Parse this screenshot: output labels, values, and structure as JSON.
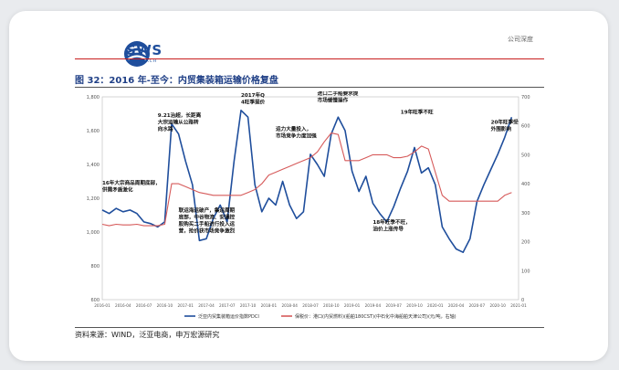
{
  "header": {
    "logo_text": "SWS",
    "logo_sub": "RESEARCH",
    "section": "公司深度"
  },
  "figure_title": "图 32：2016 年-至今：内贸集装箱运输价格复盘",
  "source": "资料来源：WIND，泛亚电商，申万宏源研究",
  "colors": {
    "blue_series": "#1f4e9c",
    "red_series": "#d65a5a",
    "title": "#1f3f86",
    "rule": "#c81e1e"
  },
  "chart_data": {
    "type": "line",
    "x_ticks": [
      "2016-01",
      "2016-04",
      "2016-07",
      "2016-10",
      "2017-01",
      "2017-04",
      "2017-07",
      "2017-10",
      "2018-01",
      "2018-04",
      "2018-07",
      "2018-10",
      "2019-01",
      "2019-04",
      "2019-07",
      "2019-10",
      "2020-01",
      "2020-04",
      "2020-07",
      "2020-10",
      "2021-01"
    ],
    "ylim_left": [
      600,
      1800
    ],
    "yticks_left": [
      "600",
      "800",
      "1,000",
      "1,200",
      "1,400",
      "1,600",
      "1,800"
    ],
    "ylim_right": [
      0,
      700
    ],
    "yticks_right": [
      "0",
      "100",
      "200",
      "300",
      "400",
      "500",
      "600",
      "700"
    ],
    "series": [
      {
        "name": "泛亚内贸集装箱运价指数PDCI",
        "axis": "left",
        "color": "#1f4e9c",
        "points": [
          [
            "2016-01",
            1130
          ],
          [
            "2016-02",
            1110
          ],
          [
            "2016-03",
            1140
          ],
          [
            "2016-04",
            1120
          ],
          [
            "2016-05",
            1130
          ],
          [
            "2016-06",
            1110
          ],
          [
            "2016-07",
            1060
          ],
          [
            "2016-08",
            1050
          ],
          [
            "2016-09",
            1030
          ],
          [
            "2016-10",
            1060
          ],
          [
            "2016-11",
            1640
          ],
          [
            "2016-12",
            1580
          ],
          [
            "2017-01",
            1420
          ],
          [
            "2017-02",
            1280
          ],
          [
            "2017-03",
            950
          ],
          [
            "2017-04",
            960
          ],
          [
            "2017-05",
            1080
          ],
          [
            "2017-06",
            1160
          ],
          [
            "2017-07",
            1060
          ],
          [
            "2017-08",
            1420
          ],
          [
            "2017-09",
            1720
          ],
          [
            "2017-10",
            1680
          ],
          [
            "2017-11",
            1280
          ],
          [
            "2017-12",
            1120
          ],
          [
            "2018-01",
            1200
          ],
          [
            "2018-02",
            1160
          ],
          [
            "2018-03",
            1300
          ],
          [
            "2018-04",
            1160
          ],
          [
            "2018-05",
            1080
          ],
          [
            "2018-06",
            1120
          ],
          [
            "2018-07",
            1460
          ],
          [
            "2018-08",
            1400
          ],
          [
            "2018-09",
            1330
          ],
          [
            "2018-10",
            1580
          ],
          [
            "2018-11",
            1680
          ],
          [
            "2018-12",
            1600
          ],
          [
            "2019-01",
            1360
          ],
          [
            "2019-02",
            1240
          ],
          [
            "2019-03",
            1330
          ],
          [
            "2019-04",
            1170
          ],
          [
            "2019-05",
            1110
          ],
          [
            "2019-06",
            1060
          ],
          [
            "2019-07",
            1150
          ],
          [
            "2019-08",
            1260
          ],
          [
            "2019-09",
            1360
          ],
          [
            "2019-10",
            1500
          ],
          [
            "2019-11",
            1350
          ],
          [
            "2019-12",
            1380
          ],
          [
            "2020-01",
            1280
          ],
          [
            "2020-02",
            1030
          ],
          [
            "2020-03",
            960
          ],
          [
            "2020-04",
            900
          ],
          [
            "2020-05",
            880
          ],
          [
            "2020-06",
            960
          ],
          [
            "2020-07",
            1180
          ],
          [
            "2020-08",
            1280
          ],
          [
            "2020-09",
            1370
          ],
          [
            "2020-10",
            1460
          ],
          [
            "2020-11",
            1560
          ],
          [
            "2020-12",
            1680
          ]
        ]
      },
      {
        "name": "保税价：港口(内贸燃料)(船舶180CST)(中石化中海船舶天津公司)(元/吨，右轴)",
        "axis": "right",
        "color": "#d65a5a",
        "points": [
          [
            "2016-01",
            260
          ],
          [
            "2016-02",
            255
          ],
          [
            "2016-03",
            260
          ],
          [
            "2016-04",
            258
          ],
          [
            "2016-05",
            258
          ],
          [
            "2016-06",
            260
          ],
          [
            "2016-07",
            255
          ],
          [
            "2016-08",
            255
          ],
          [
            "2016-09",
            255
          ],
          [
            "2016-10",
            260
          ],
          [
            "2016-11",
            400
          ],
          [
            "2016-12",
            400
          ],
          [
            "2017-01",
            390
          ],
          [
            "2017-02",
            380
          ],
          [
            "2017-03",
            370
          ],
          [
            "2017-04",
            365
          ],
          [
            "2017-05",
            360
          ],
          [
            "2017-06",
            360
          ],
          [
            "2017-07",
            360
          ],
          [
            "2017-08",
            360
          ],
          [
            "2017-09",
            360
          ],
          [
            "2017-10",
            370
          ],
          [
            "2017-11",
            380
          ],
          [
            "2017-12",
            400
          ],
          [
            "2018-01",
            430
          ],
          [
            "2018-02",
            440
          ],
          [
            "2018-03",
            450
          ],
          [
            "2018-04",
            460
          ],
          [
            "2018-05",
            470
          ],
          [
            "2018-06",
            480
          ],
          [
            "2018-07",
            490
          ],
          [
            "2018-08",
            510
          ],
          [
            "2018-09",
            545
          ],
          [
            "2018-10",
            575
          ],
          [
            "2018-11",
            570
          ],
          [
            "2018-12",
            480
          ],
          [
            "2019-01",
            480
          ],
          [
            "2019-02",
            480
          ],
          [
            "2019-03",
            490
          ],
          [
            "2019-04",
            500
          ],
          [
            "2019-05",
            500
          ],
          [
            "2019-06",
            500
          ],
          [
            "2019-07",
            490
          ],
          [
            "2019-08",
            490
          ],
          [
            "2019-09",
            495
          ],
          [
            "2019-10",
            510
          ],
          [
            "2019-11",
            530
          ],
          [
            "2019-12",
            520
          ],
          [
            "2020-01",
            440
          ],
          [
            "2020-02",
            360
          ],
          [
            "2020-03",
            340
          ],
          [
            "2020-04",
            340
          ],
          [
            "2020-05",
            340
          ],
          [
            "2020-06",
            340
          ],
          [
            "2020-07",
            340
          ],
          [
            "2020-08",
            340
          ],
          [
            "2020-09",
            340
          ],
          [
            "2020-10",
            340
          ],
          [
            "2020-11",
            360
          ],
          [
            "2020-12",
            370
          ]
        ]
      }
    ],
    "annotations": [
      {
        "text": [
          "9.21治超，长距离",
          "大宗运输从公路转",
          "向水路"
        ],
        "at": [
          "2016-09",
          1680
        ]
      },
      {
        "text": [
          "2017年Q",
          "4旺季提价"
        ],
        "at": [
          "2017-09",
          1800
        ]
      },
      {
        "text": [
          "进口二手船要求提",
          "市场缓慢操作"
        ],
        "at": [
          "2018-08",
          1810
        ]
      },
      {
        "text": [
          "运力大量投入，",
          "市场竞争力度加强"
        ],
        "at": [
          "2018-02",
          1600
        ]
      },
      {
        "text": [
          "19年旺季不旺"
        ],
        "at": [
          "2019-08",
          1700
        ]
      },
      {
        "text": [
          "16年大宗商品周期底部，",
          "供需矛盾激化"
        ],
        "at": [
          "2016-01",
          1280
        ]
      },
      {
        "text": [
          "联运海运破产，集运周期",
          "底部，中谷物流、安通控",
          "股购买二手船进行投入运",
          "营，抢价获市场竞争激烈"
        ],
        "at": [
          "2016-12",
          1120
        ]
      },
      {
        "text": [
          "18年旺季不旺，",
          "油价上涨传导"
        ],
        "at": [
          "2019-04",
          1050
        ]
      },
      {
        "text": [
          "20年旺季受",
          "外围影响"
        ],
        "at": [
          "2020-09",
          1640
        ]
      }
    ]
  }
}
